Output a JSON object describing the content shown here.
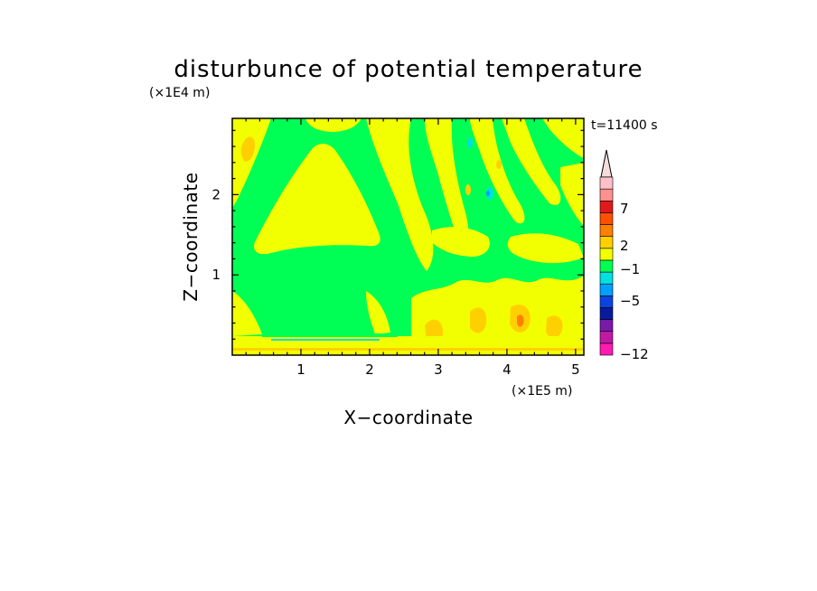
{
  "chart_data": {
    "type": "heatmap",
    "title": "disturbunce of potential temperature",
    "time_label": "t=11400 s",
    "xlabel": "X−coordinate",
    "ylabel": "Z−coordinate",
    "x_unit": "(×1E5 m)",
    "y_unit": "(×1E4 m)",
    "xlim": [
      0,
      5.12
    ],
    "ylim": [
      0,
      2.95
    ],
    "x_ticks": [
      1,
      2,
      3,
      4,
      5
    ],
    "y_ticks": [
      1,
      2
    ],
    "x_tick_labels": [
      "1",
      "2",
      "3",
      "4",
      "5"
    ],
    "y_tick_labels": [
      "1",
      "2"
    ],
    "background_level_color": "#00ff55",
    "colorbar": {
      "labels": [
        {
          "text": "7",
          "value": 7
        },
        {
          "text": "2",
          "value": 2
        },
        {
          "text": "−1",
          "value": -1
        },
        {
          "text": "−5",
          "value": -5
        },
        {
          "text": "−12",
          "value": -12
        }
      ],
      "colors": [
        "#ff1ab4",
        "#c01aa4",
        "#7a1aa8",
        "#0a1a9c",
        "#0a44e0",
        "#00a0ff",
        "#00e0e0",
        "#00ff55",
        "#f2ff00",
        "#ffd000",
        "#ff8000",
        "#ff5000",
        "#e01a1a",
        "#ff9090",
        "#ffc0c8"
      ],
      "arrow_color": "#f5dcdc"
    },
    "regions": [
      {
        "color": "#f2ff00",
        "desc": "near-zero positive background, upper domain"
      },
      {
        "color": "#00ff55",
        "desc": "weak negative band"
      },
      {
        "color": "#ffd000",
        "desc": "small positive spots"
      },
      {
        "color": "#00e0e0",
        "desc": "isolated negative spots"
      }
    ]
  }
}
